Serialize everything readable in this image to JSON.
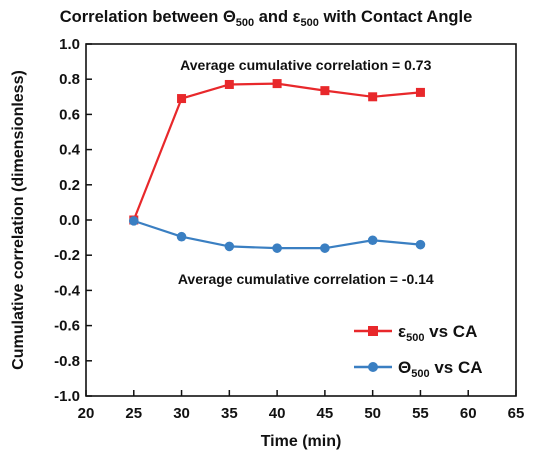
{
  "chart_data": {
    "type": "line",
    "title": {
      "prefix": "Correlation between ",
      "sym1": "Θ",
      "sub1": "500",
      "middle": " and ",
      "sym2": "ε",
      "sub2": "500",
      "suffix": "  with Contact Angle"
    },
    "xlabel": "Time (min)",
    "ylabel": "Cumulative correlation (dimensionless)",
    "xlim": [
      20,
      65
    ],
    "ylim": [
      -1.0,
      1.0
    ],
    "xticks": [
      20,
      25,
      30,
      35,
      40,
      45,
      50,
      55,
      60,
      65
    ],
    "yticks": [
      -1.0,
      -0.8,
      -0.6,
      -0.4,
      -0.2,
      0.0,
      0.2,
      0.4,
      0.6,
      0.8,
      1.0
    ],
    "x": [
      25,
      30,
      35,
      40,
      45,
      50,
      55
    ],
    "series": [
      {
        "name": "ε500 vs CA",
        "legend_symbol": "ε",
        "legend_sub": "500",
        "legend_suffix": " vs CA",
        "marker": "square",
        "color": "#e8282b",
        "values": [
          0.0,
          0.69,
          0.77,
          0.775,
          0.735,
          0.7,
          0.725
        ]
      },
      {
        "name": "Θ500 vs CA",
        "legend_symbol": "Θ",
        "legend_sub": "500",
        "legend_suffix": " vs CA",
        "marker": "circle",
        "color": "#3a7fc2",
        "values": [
          -0.005,
          -0.095,
          -0.15,
          -0.16,
          -0.16,
          -0.115,
          -0.14
        ]
      }
    ],
    "annotations": [
      {
        "text": "Average cumulative correlation = 0.73",
        "x": 43,
        "y": 0.88
      },
      {
        "text": "Average cumulative correlation = -0.14",
        "x": 43,
        "y": -0.335
      }
    ],
    "legend_position": "bottom-right",
    "grid": false
  }
}
